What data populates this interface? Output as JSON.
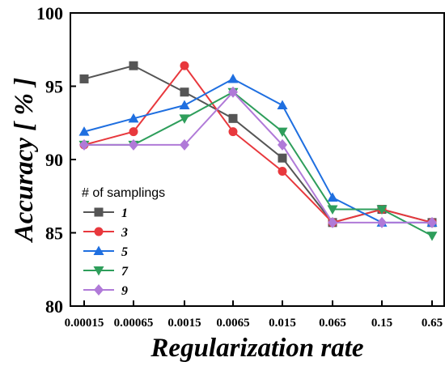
{
  "chart_data": {
    "type": "line",
    "title": "",
    "xlabel": "Regularization rate",
    "ylabel": "Accuracy [ % ]",
    "x_categories": [
      "0.00015",
      "0.00065",
      "0.0015",
      "0.0065",
      "0.015",
      "0.065",
      "0.15",
      "0.65"
    ],
    "ylim": [
      80,
      100
    ],
    "y_ticks": [
      "80",
      "85",
      "90",
      "95",
      "100"
    ],
    "grid": false,
    "legend_title": "# of samplings",
    "legend_position": "bottom-left",
    "series": [
      {
        "name": "1",
        "color": "#555555",
        "marker": "square",
        "values": [
          95.5,
          96.4,
          94.6,
          92.8,
          90.1,
          85.7,
          86.6,
          85.7
        ]
      },
      {
        "name": "3",
        "color": "#e8383d",
        "marker": "circle",
        "values": [
          91.0,
          91.9,
          96.4,
          91.9,
          89.2,
          85.7,
          86.6,
          85.7
        ]
      },
      {
        "name": "5",
        "color": "#1f6fe0",
        "marker": "triangle-up",
        "values": [
          91.9,
          92.8,
          93.7,
          95.5,
          93.7,
          87.4,
          85.7,
          85.7
        ]
      },
      {
        "name": "7",
        "color": "#2e9e5b",
        "marker": "triangle-down",
        "values": [
          91.0,
          91.0,
          92.8,
          94.6,
          91.9,
          86.6,
          86.6,
          84.8
        ]
      },
      {
        "name": "9",
        "color": "#b07ad8",
        "marker": "diamond",
        "values": [
          91.0,
          91.0,
          91.0,
          94.6,
          91.0,
          85.7,
          85.7,
          85.7
        ]
      }
    ]
  }
}
